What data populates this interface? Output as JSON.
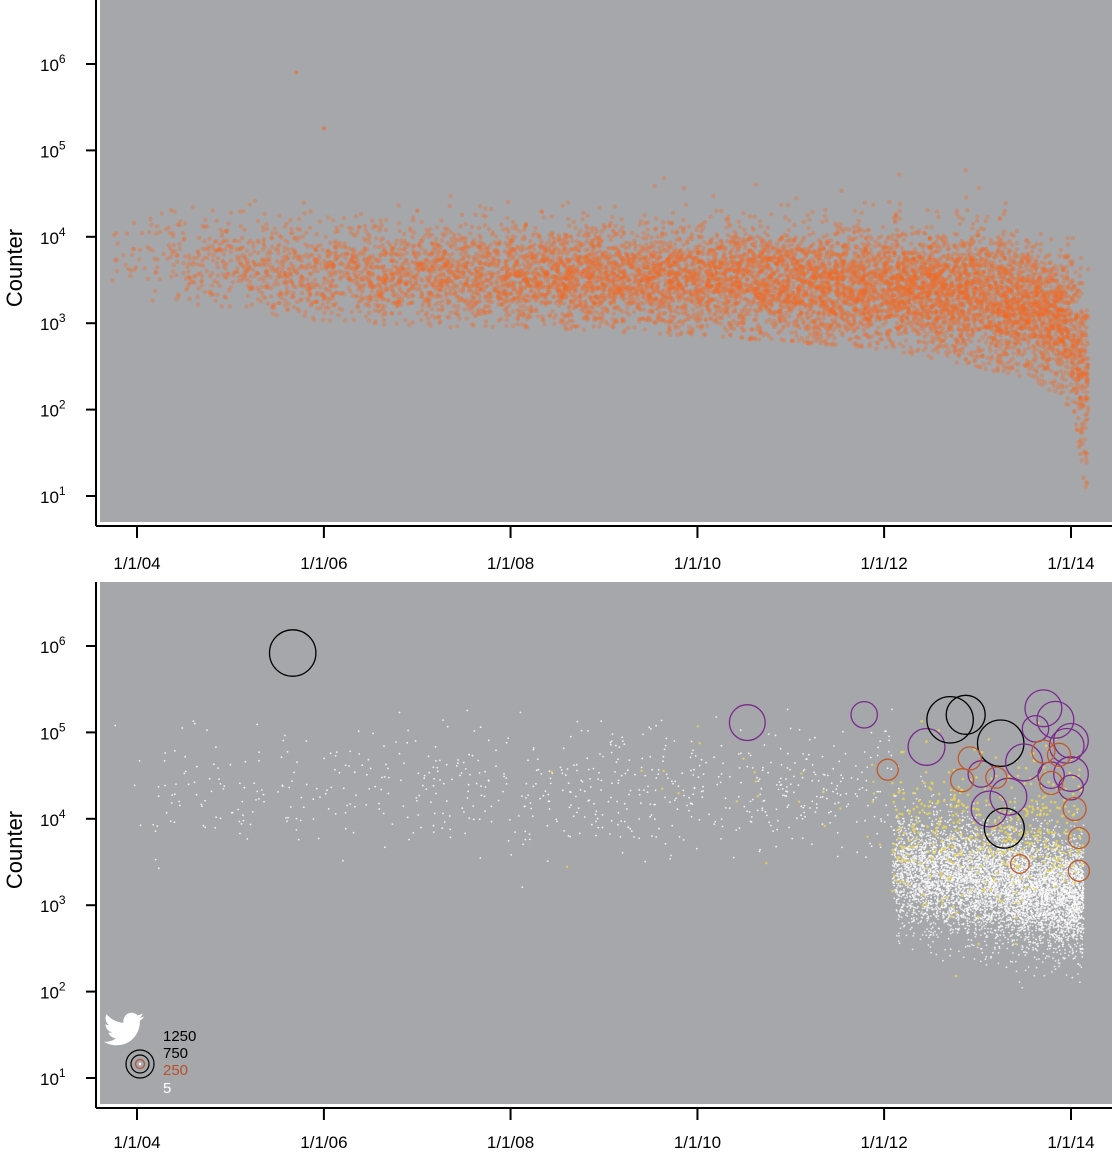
{
  "chart_data": [
    {
      "type": "scatter",
      "title": "",
      "xlabel": "",
      "ylabel": "Counter",
      "y_scale": "log",
      "ylim": [
        10,
        5000000
      ],
      "xlim": [
        "2003-08-01",
        "2014-06-01"
      ],
      "y_ticks": [
        {
          "value": 10,
          "base": "10",
          "exp": "1"
        },
        {
          "value": 100,
          "base": "10",
          "exp": "2"
        },
        {
          "value": 1000,
          "base": "10",
          "exp": "3"
        },
        {
          "value": 10000,
          "base": "10",
          "exp": "4"
        },
        {
          "value": 100000,
          "base": "10",
          "exp": "5"
        },
        {
          "value": 1000000,
          "base": "10",
          "exp": "6"
        }
      ],
      "x_ticks": [
        {
          "date": "2004-01-01",
          "label": "1/1/04"
        },
        {
          "date": "2006-01-01",
          "label": "1/1/06"
        },
        {
          "date": "2008-01-01",
          "label": "1/1/08"
        },
        {
          "date": "2010-01-01",
          "label": "1/1/10"
        },
        {
          "date": "2012-01-01",
          "label": "1/1/12"
        },
        {
          "date": "2014-01-01",
          "label": "1/1/14"
        }
      ],
      "point_color": "#f06a25",
      "background": "#a6a7aa",
      "density_envelope": [
        {
          "date": "2003-09-15",
          "low": 2000,
          "high": 40000
        },
        {
          "date": "2005-01-01",
          "low": 1500,
          "high": 35000
        },
        {
          "date": "2006-01-01",
          "low": 1000,
          "high": 30000
        },
        {
          "date": "2007-01-01",
          "low": 900,
          "high": 30000
        },
        {
          "date": "2008-01-01",
          "low": 900,
          "high": 30000
        },
        {
          "date": "2009-01-01",
          "low": 800,
          "high": 30000
        },
        {
          "date": "2010-01-01",
          "low": 700,
          "high": 30000
        },
        {
          "date": "2011-01-01",
          "low": 600,
          "high": 30000
        },
        {
          "date": "2012-01-01",
          "low": 500,
          "high": 30000
        },
        {
          "date": "2013-01-01",
          "low": 300,
          "high": 30000
        },
        {
          "date": "2013-08-01",
          "low": 200,
          "high": 20000
        },
        {
          "date": "2014-01-01",
          "low": 100,
          "high": 15000
        },
        {
          "date": "2014-03-01",
          "low": 10,
          "high": 10000
        }
      ],
      "notable_points": [
        {
          "date": "2005-09-15",
          "value": 800000
        },
        {
          "date": "2006-01-01",
          "value": 180000
        },
        {
          "date": "2007-01-01",
          "value": 20000
        }
      ]
    },
    {
      "type": "scatter",
      "title": "",
      "xlabel": "",
      "ylabel": "Counter",
      "y_scale": "log",
      "ylim": [
        10,
        5000000
      ],
      "xlim": [
        "2003-08-01",
        "2014-06-01"
      ],
      "y_ticks": [
        {
          "value": 10,
          "base": "10",
          "exp": "1"
        },
        {
          "value": 100,
          "base": "10",
          "exp": "2"
        },
        {
          "value": 1000,
          "base": "10",
          "exp": "3"
        },
        {
          "value": 10000,
          "base": "10",
          "exp": "4"
        },
        {
          "value": 100000,
          "base": "10",
          "exp": "5"
        },
        {
          "value": 1000000,
          "base": "10",
          "exp": "6"
        }
      ],
      "x_ticks": [
        {
          "date": "2004-01-01",
          "label": "1/1/04"
        },
        {
          "date": "2006-01-01",
          "label": "1/1/06"
        },
        {
          "date": "2008-01-01",
          "label": "1/1/08"
        },
        {
          "date": "2010-01-01",
          "label": "1/1/10"
        },
        {
          "date": "2012-01-01",
          "label": "1/1/12"
        },
        {
          "date": "2014-01-01",
          "label": "1/1/14"
        }
      ],
      "background": "#a6a7aa",
      "size_legend": {
        "icon": "twitter-bird-icon",
        "entries": [
          {
            "label": "1250",
            "color": "#000000"
          },
          {
            "label": "750",
            "color": "#000000"
          },
          {
            "label": "250",
            "color": "#b9502b"
          },
          {
            "label": "5",
            "color": "#ffffff"
          }
        ]
      },
      "size_color_scale": [
        {
          "max": 5,
          "color": "#ffffff"
        },
        {
          "max": 30,
          "color": "#e0d25a"
        },
        {
          "max": 100,
          "color": "#c9a020"
        },
        {
          "max": 250,
          "color": "#c05a2a"
        },
        {
          "max": 750,
          "color": "#7a2a8c"
        },
        {
          "max": 1250,
          "color": "#000000"
        }
      ],
      "large_points": [
        {
          "date": "2005-09-01",
          "value": 830000,
          "size": 1250
        },
        {
          "date": "2010-07-15",
          "value": 130000,
          "size": 700
        },
        {
          "date": "2011-10-15",
          "value": 160000,
          "size": 350
        },
        {
          "date": "2012-01-15",
          "value": 37000,
          "size": 200
        },
        {
          "date": "2012-06-15",
          "value": 68000,
          "size": 750
        },
        {
          "date": "2012-09-15",
          "value": 140000,
          "size": 1250
        },
        {
          "date": "2012-11-15",
          "value": 160000,
          "size": 850
        },
        {
          "date": "2013-01-15",
          "value": 33000,
          "size": 350
        },
        {
          "date": "2013-02-15",
          "value": 13000,
          "size": 700
        },
        {
          "date": "2013-04-01",
          "value": 75000,
          "size": 1250
        },
        {
          "date": "2013-04-15",
          "value": 7800,
          "size": 900
        },
        {
          "date": "2013-05-01",
          "value": 18000,
          "size": 750
        },
        {
          "date": "2013-07-01",
          "value": 45000,
          "size": 750
        },
        {
          "date": "2013-08-15",
          "value": 110000,
          "size": 350
        },
        {
          "date": "2013-09-15",
          "value": 190000,
          "size": 750
        },
        {
          "date": "2013-11-01",
          "value": 140000,
          "size": 750
        },
        {
          "date": "2013-10-15",
          "value": 32000,
          "size": 350
        },
        {
          "date": "2013-12-15",
          "value": 70000,
          "size": 650
        },
        {
          "date": "2014-01-01",
          "value": 80000,
          "size": 650
        },
        {
          "date": "2014-01-01",
          "value": 33000,
          "size": 650
        },
        {
          "date": "2014-01-01",
          "value": 23000,
          "size": 300
        },
        {
          "date": "2014-01-15",
          "value": 13000,
          "size": 250
        },
        {
          "date": "2012-11-01",
          "value": 28000,
          "size": 250
        },
        {
          "date": "2012-12-01",
          "value": 50000,
          "size": 250
        },
        {
          "date": "2013-03-15",
          "value": 30000,
          "size": 200
        },
        {
          "date": "2013-09-15",
          "value": 60000,
          "size": 250
        },
        {
          "date": "2013-10-15",
          "value": 26000,
          "size": 250
        },
        {
          "date": "2013-11-15",
          "value": 55000,
          "size": 250
        },
        {
          "date": "2014-02-01",
          "value": 6000,
          "size": 200
        },
        {
          "date": "2014-02-01",
          "value": 2500,
          "size": 200
        },
        {
          "date": "2013-06-15",
          "value": 3000,
          "size": 150
        }
      ]
    }
  ]
}
